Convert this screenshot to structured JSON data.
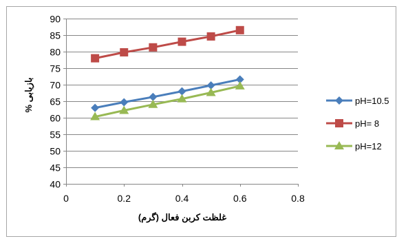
{
  "chart_data": {
    "type": "line",
    "title": "",
    "xlabel": "غلظت کربن فعال (گرم)",
    "ylabel": "بازیابی %",
    "xlim": [
      0,
      0.8
    ],
    "ylim": [
      40,
      90
    ],
    "x_ticks": [
      "0",
      "0.2",
      "0.4",
      "0.6",
      "0.8"
    ],
    "y_ticks": [
      "40",
      "45",
      "50",
      "55",
      "60",
      "65",
      "70",
      "75",
      "80",
      "85",
      "90"
    ],
    "grid": "horizontal",
    "legend_position": "right",
    "series": [
      {
        "name": "pH=10.5",
        "color": "#4A7EBB",
        "marker": "diamond",
        "x": [
          0.1,
          0.2,
          0.3,
          0.4,
          0.5,
          0.6
        ],
        "values": [
          63,
          64.7,
          66.3,
          68,
          69.8,
          71.6
        ]
      },
      {
        "name": "pH= 8",
        "color": "#BE4B48",
        "marker": "square",
        "x": [
          0.1,
          0.2,
          0.3,
          0.4,
          0.5,
          0.6
        ],
        "values": [
          78,
          79.8,
          81.3,
          83,
          84.6,
          86.5
        ]
      },
      {
        "name": "pH=12",
        "color": "#98B954",
        "marker": "triangle",
        "x": [
          0.1,
          0.2,
          0.3,
          0.4,
          0.5,
          0.6
        ],
        "values": [
          60.3,
          62.2,
          64,
          65.7,
          67.6,
          69.6
        ]
      }
    ]
  }
}
